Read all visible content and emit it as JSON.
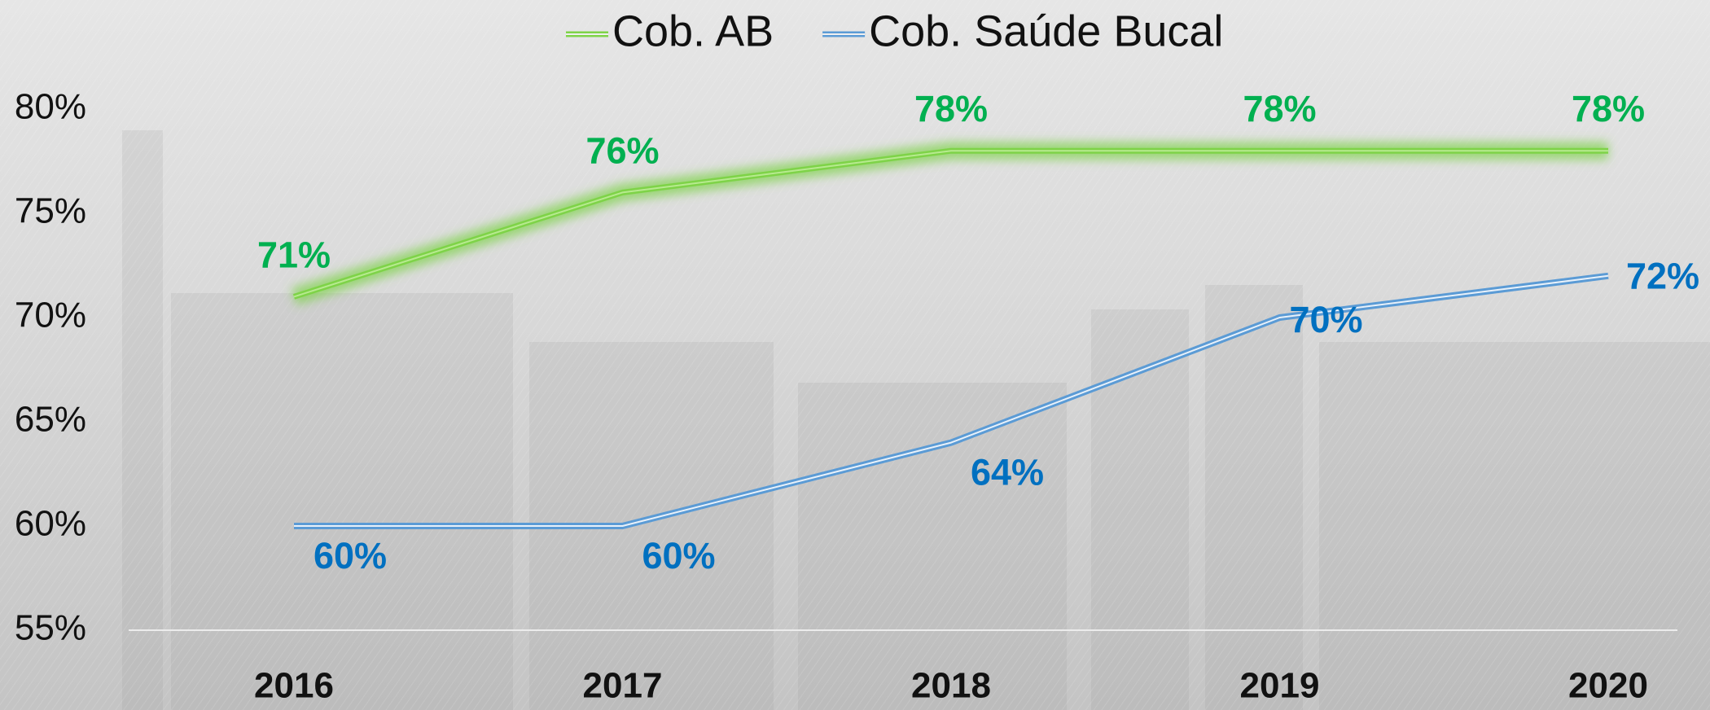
{
  "chart_data": {
    "type": "line",
    "categories": [
      "2016",
      "2017",
      "2018",
      "2019",
      "2020"
    ],
    "series": [
      {
        "name": "Cob. AB",
        "color": "#7ed348",
        "label_color": "#00b050",
        "values": [
          71,
          76,
          78,
          78,
          78
        ],
        "value_labels": [
          "71%",
          "76%",
          "78%",
          "78%",
          "78%"
        ]
      },
      {
        "name": "Cob. Saúde Bucal",
        "color": "#5b9bd5",
        "label_color": "#0070c0",
        "values": [
          60,
          60,
          64,
          70,
          72
        ],
        "value_labels": [
          "60%",
          "60%",
          "64%",
          "70%",
          "72%"
        ]
      }
    ],
    "ylim": [
      55,
      80
    ],
    "yticks": [
      {
        "value": 55,
        "label": "55%"
      },
      {
        "value": 60,
        "label": "60%"
      },
      {
        "value": 65,
        "label": "65%"
      },
      {
        "value": 70,
        "label": "70%"
      },
      {
        "value": 75,
        "label": "75%"
      },
      {
        "value": 80,
        "label": "80%"
      }
    ],
    "grid": false
  }
}
